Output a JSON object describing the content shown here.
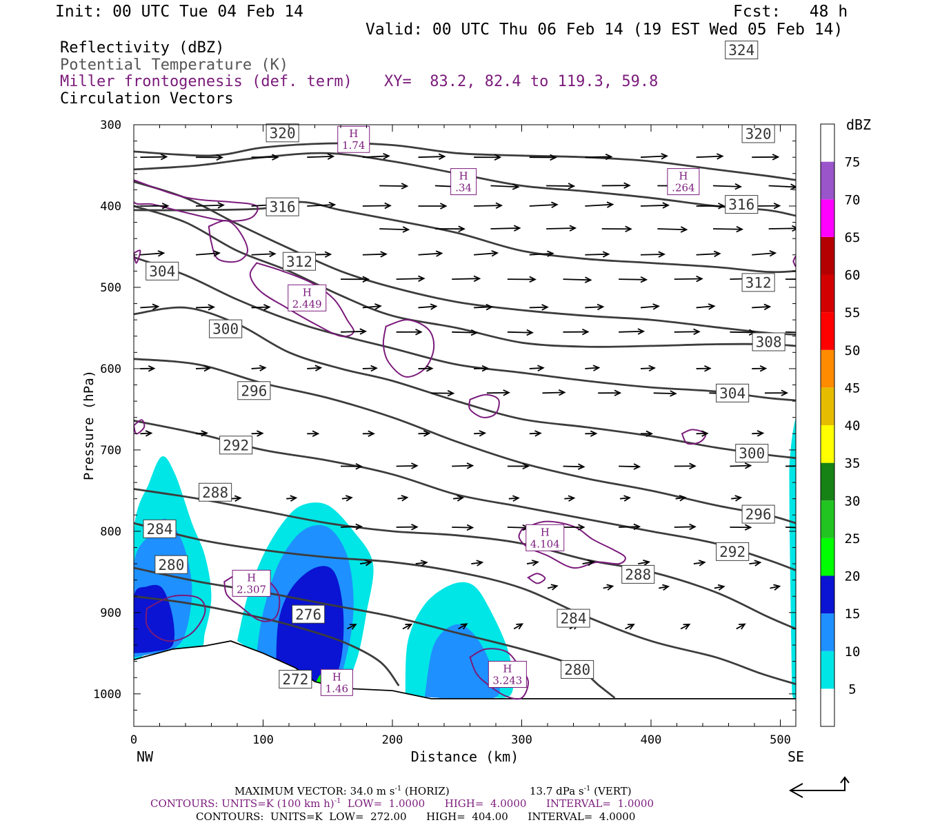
{
  "header": {
    "init": "Init: 00 UTC Tue 04 Feb 14",
    "fcst": "Fcst:   48 h",
    "valid": "Valid: 00 UTC Thu 06 Feb 14 (19 EST Wed 05 Feb 14)",
    "line_reflectivity": "Reflectivity (dBZ)",
    "line_theta": "Potential Temperature (K)",
    "line_miller": "Miller frontogenesis (def. term)",
    "line_xy": "XY=  83.2, 82.4 to 119.3, 59.8",
    "line_vectors": "Circulation Vectors"
  },
  "colors": {
    "theta": "#3c3c3c",
    "miller": "#7a1a7a",
    "vector": "#000000",
    "terrain": "#000000"
  },
  "chart_data": {
    "type": "cross-section",
    "xlabel": "Distance (km)",
    "ylabel": "Pressure (hPa)",
    "xlim": [
      0,
      512
    ],
    "ylim": [
      1040,
      300
    ],
    "x_ticks": [
      0,
      100,
      200,
      300,
      400,
      500
    ],
    "y_ticks": [
      300,
      400,
      500,
      600,
      700,
      800,
      900,
      1000
    ],
    "left_end_label": "NW",
    "right_end_label": "SE",
    "colorbar": {
      "unit": "dBZ",
      "levels": [
        5,
        10,
        15,
        20,
        25,
        30,
        35,
        40,
        45,
        50,
        55,
        60,
        65,
        70,
        75
      ],
      "colors": [
        "#ffffff",
        "#00e5e5",
        "#1e90ff",
        "#0a14d2",
        "#00ff00",
        "#22c422",
        "#168216",
        "#ffff00",
        "#e6bc00",
        "#ff8c00",
        "#ff0000",
        "#d20000",
        "#b40000",
        "#ff00ff",
        "#9955c9",
        "#ffffff"
      ]
    },
    "theta_contours": [
      {
        "value": 280,
        "label": "280",
        "label_at": [
          343,
          970
        ],
        "points": [
          [
            0,
            845
          ],
          [
            50,
            862
          ],
          [
            100,
            875
          ],
          [
            150,
            890
          ],
          [
            200,
            905
          ],
          [
            250,
            925
          ],
          [
            300,
            945
          ],
          [
            340,
            965
          ],
          [
            360,
            990
          ],
          [
            372,
            1005
          ]
        ]
      },
      {
        "value": 284,
        "label": "284",
        "label_at": [
          340,
          907
        ],
        "points": [
          [
            0,
            790
          ],
          [
            50,
            810
          ],
          [
            100,
            823
          ],
          [
            150,
            832
          ],
          [
            200,
            838
          ],
          [
            250,
            850
          ],
          [
            300,
            870
          ],
          [
            350,
            905
          ],
          [
            400,
            935
          ],
          [
            450,
            955
          ],
          [
            485,
            975
          ],
          [
            512,
            988
          ]
        ]
      },
      {
        "value": 288,
        "label": "288",
        "label_at": [
          390,
          853
        ],
        "points": [
          [
            0,
            748
          ],
          [
            50,
            760
          ],
          [
            100,
            775
          ],
          [
            150,
            790
          ],
          [
            200,
            800
          ],
          [
            250,
            805
          ],
          [
            300,
            815
          ],
          [
            350,
            835
          ],
          [
            400,
            850
          ],
          [
            450,
            875
          ],
          [
            490,
            905
          ],
          [
            512,
            920
          ]
        ]
      },
      {
        "value": 292,
        "label": "292",
        "label_at": [
          463,
          825
        ],
        "points": [
          [
            0,
            664
          ],
          [
            50,
            680
          ],
          [
            100,
            700
          ],
          [
            150,
            713
          ],
          [
            200,
            730
          ],
          [
            250,
            755
          ],
          [
            300,
            770
          ],
          [
            350,
            785
          ],
          [
            400,
            800
          ],
          [
            450,
            815
          ],
          [
            490,
            835
          ],
          [
            512,
            848
          ]
        ]
      },
      {
        "value": 296,
        "label": "296",
        "label_at": [
          483,
          779
        ],
        "points": [
          [
            0,
            588
          ],
          [
            50,
            595
          ],
          [
            100,
            618
          ],
          [
            150,
            636
          ],
          [
            200,
            660
          ],
          [
            250,
            690
          ],
          [
            300,
            716
          ],
          [
            350,
            735
          ],
          [
            400,
            750
          ],
          [
            450,
            768
          ],
          [
            490,
            780
          ],
          [
            512,
            790
          ]
        ]
      },
      {
        "value": 300,
        "label": "300",
        "label_at": [
          478,
          704
        ],
        "points": [
          [
            0,
            533
          ],
          [
            40,
            525
          ],
          [
            80,
            545
          ],
          [
            120,
            580
          ],
          [
            160,
            600
          ],
          [
            200,
            615
          ],
          [
            250,
            640
          ],
          [
            300,
            662
          ],
          [
            350,
            672
          ],
          [
            400,
            683
          ],
          [
            450,
            697
          ],
          [
            490,
            706
          ],
          [
            512,
            710
          ]
        ]
      },
      {
        "value": 304,
        "label": "304",
        "label_at": [
          463,
          630
        ],
        "points": [
          [
            0,
            463
          ],
          [
            40,
            485
          ],
          [
            80,
            515
          ],
          [
            120,
            540
          ],
          [
            150,
            555
          ],
          [
            200,
            575
          ],
          [
            250,
            595
          ],
          [
            300,
            605
          ],
          [
            350,
            615
          ],
          [
            400,
            623
          ],
          [
            450,
            628
          ],
          [
            490,
            636
          ],
          [
            512,
            639
          ]
        ]
      },
      {
        "value": 308,
        "label": "308",
        "label_at": [
          491,
          567
        ],
        "points": [
          [
            0,
            400
          ],
          [
            40,
            420
          ],
          [
            80,
            455
          ],
          [
            120,
            480
          ],
          [
            160,
            510
          ],
          [
            200,
            535
          ],
          [
            250,
            550
          ],
          [
            300,
            568
          ],
          [
            350,
            573
          ],
          [
            400,
            572
          ],
          [
            450,
            570
          ],
          [
            490,
            570
          ],
          [
            512,
            572
          ]
        ]
      },
      {
        "value": 312,
        "label": "312",
        "label_at": [
          483,
          494
        ],
        "points": [
          [
            0,
            370
          ],
          [
            40,
            390
          ],
          [
            80,
            422
          ],
          [
            120,
            452
          ],
          [
            160,
            480
          ],
          [
            200,
            500
          ],
          [
            250,
            518
          ],
          [
            300,
            528
          ],
          [
            350,
            535
          ],
          [
            400,
            540
          ],
          [
            450,
            549
          ],
          [
            490,
            556
          ],
          [
            512,
            558
          ]
        ]
      },
      {
        "value": 316,
        "label": "316",
        "label_at": [
          470,
          398
        ],
        "points": [
          [
            0,
            405
          ],
          [
            50,
            405
          ],
          [
            100,
            403
          ],
          [
            130,
            395
          ],
          [
            160,
            405
          ],
          [
            200,
            417
          ],
          [
            250,
            433
          ],
          [
            300,
            455
          ],
          [
            350,
            465
          ],
          [
            400,
            470
          ],
          [
            450,
            475
          ],
          [
            490,
            481
          ],
          [
            512,
            480
          ]
        ]
      },
      {
        "value": 320,
        "label": "320",
        "label_at": [
          483,
          311
        ],
        "points": [
          [
            0,
            355
          ],
          [
            50,
            350
          ],
          [
            100,
            340
          ],
          [
            150,
            335
          ],
          [
            200,
            345
          ],
          [
            250,
            360
          ],
          [
            300,
            375
          ],
          [
            350,
            382
          ],
          [
            400,
            390
          ],
          [
            450,
            400
          ],
          [
            490,
            405
          ],
          [
            512,
            412
          ]
        ]
      },
      {
        "value": 324,
        "label": "324",
        "label_at": [
          470,
          208
        ],
        "points": [
          [
            0,
            333
          ],
          [
            60,
            338
          ],
          [
            100,
            328
          ],
          [
            150,
            323
          ],
          [
            200,
            325
          ],
          [
            250,
            335
          ],
          [
            300,
            338
          ],
          [
            350,
            340
          ],
          [
            400,
            345
          ],
          [
            450,
            355
          ],
          [
            490,
            363
          ],
          [
            512,
            368
          ]
        ]
      }
    ],
    "interior_theta_labels": [
      {
        "label": "320",
        "at": [
          115,
          310
        ]
      },
      {
        "label": "316",
        "at": [
          115,
          401
        ]
      },
      {
        "label": "312",
        "at": [
          128,
          468
        ]
      },
      {
        "label": "304",
        "at": [
          22,
          480
        ]
      },
      {
        "label": "300",
        "at": [
          71,
          551
        ]
      },
      {
        "label": "296",
        "at": [
          93,
          627
        ]
      },
      {
        "label": "292",
        "at": [
          79,
          694
        ]
      },
      {
        "label": "288",
        "at": [
          63,
          752
        ]
      },
      {
        "label": "284",
        "at": [
          20,
          797
        ]
      },
      {
        "label": "280",
        "at": [
          29,
          841
        ]
      },
      {
        "label": "276",
        "at": [
          135,
          902
        ]
      },
      {
        "label": "272",
        "at": [
          125,
          982
        ]
      }
    ],
    "miller_maxima": [
      {
        "label": "H",
        "value": "1.74",
        "at": [
          170,
          318
        ]
      },
      {
        "label": "H",
        "value": ".34",
        "at": [
          255,
          370
        ]
      },
      {
        "label": "H",
        "value": ".264",
        "at": [
          425,
          370
        ]
      },
      {
        "label": "H",
        "value": "2.449",
        "at": [
          134,
          513
        ]
      },
      {
        "label": "H",
        "value": "4.104",
        "at": [
          318,
          808
        ]
      },
      {
        "label": "H",
        "value": "2.307",
        "at": [
          91,
          864
        ]
      },
      {
        "label": "H",
        "value": "3.243",
        "at": [
          289,
          976
        ]
      },
      {
        "label": "H",
        "value": "1.46",
        "at": [
          157,
          986
        ]
      }
    ],
    "footer": {
      "max_vector": "MAXIMUM VECTOR:  34.0 m s",
      "max_vector_exp": "-1",
      "max_vector_horiz": " (HORIZ)",
      "max_vector_vert_val": "13.7 dPa s",
      "max_vector_vert_exp": "-1",
      "max_vector_vert_tail": " (VERT)",
      "contours_1a": "CONTOURS:  UNITS=K (100 km h)",
      "contours_1b": "  LOW=  1.0000      HIGH=  4.0000      INTERVAL=  1.0000",
      "contours_1_exp": "-1",
      "contours_2": "CONTOURS:  UNITS=K  LOW=  272.00      HIGH=  404.00      INTERVAL=  4.0000"
    }
  }
}
